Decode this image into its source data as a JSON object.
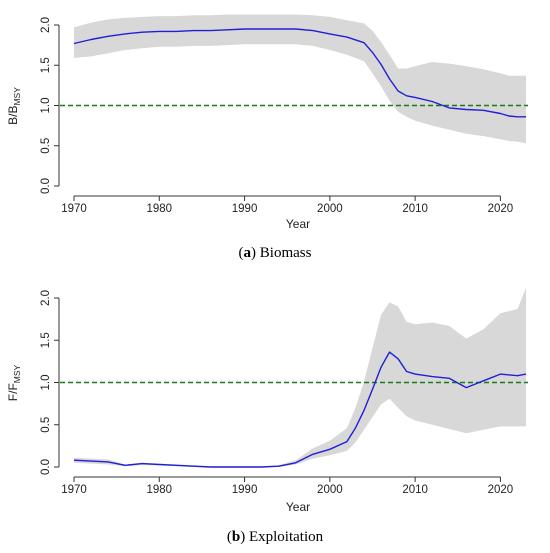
{
  "chart_data": [
    {
      "type": "line",
      "caption_prefix": "(",
      "caption_letter": "a",
      "caption_suffix": ") Biomass",
      "xlabel": "Year",
      "ylabel_main": "B/B",
      "ylabel_sub": "MSY",
      "xlim": [
        1970,
        2023
      ],
      "ylim": [
        0,
        2.0
      ],
      "xticks": [
        1970,
        1980,
        1990,
        2000,
        2010,
        2020
      ],
      "yticks": [
        "0.0",
        "0.5",
        "1.0",
        "1.5",
        "2.0"
      ],
      "reference_line": 1.0,
      "x": [
        1970,
        1972,
        1974,
        1976,
        1978,
        1980,
        1982,
        1984,
        1986,
        1988,
        1990,
        1992,
        1994,
        1996,
        1998,
        2000,
        2002,
        2004,
        2005,
        2006,
        2007,
        2008,
        2009,
        2010,
        2012,
        2014,
        2016,
        2018,
        2020,
        2021,
        2022,
        2023
      ],
      "series": [
        {
          "values": [
            1.77,
            1.82,
            1.86,
            1.89,
            1.91,
            1.92,
            1.92,
            1.93,
            1.93,
            1.94,
            1.95,
            1.95,
            1.95,
            1.95,
            1.93,
            1.89,
            1.85,
            1.78,
            1.66,
            1.51,
            1.33,
            1.18,
            1.12,
            1.1,
            1.05,
            0.97,
            0.95,
            0.94,
            0.9,
            0.87,
            0.86,
            0.86
          ]
        },
        {
          "values": [
            1.97,
            2.03,
            2.07,
            2.09,
            2.1,
            2.11,
            2.11,
            2.12,
            2.12,
            2.13,
            2.13,
            2.13,
            2.13,
            2.13,
            2.12,
            2.1,
            2.06,
            2.02,
            1.93,
            1.79,
            1.63,
            1.46,
            1.46,
            1.49,
            1.54,
            1.52,
            1.49,
            1.45,
            1.4,
            1.37,
            1.37,
            1.37
          ]
        },
        {
          "values": [
            1.59,
            1.61,
            1.65,
            1.69,
            1.71,
            1.73,
            1.73,
            1.74,
            1.74,
            1.75,
            1.76,
            1.76,
            1.76,
            1.76,
            1.74,
            1.69,
            1.63,
            1.55,
            1.4,
            1.24,
            1.06,
            0.92,
            0.86,
            0.81,
            0.75,
            0.7,
            0.65,
            0.62,
            0.58,
            0.56,
            0.55,
            0.53
          ]
        }
      ],
      "colors": {
        "line": "#1f1fd6",
        "band": "#d8d8d8",
        "ref": "#1a7a1a"
      }
    },
    {
      "type": "line",
      "caption_prefix": "(",
      "caption_letter": "b",
      "caption_suffix": ") Exploitation",
      "xlabel": "Year",
      "ylabel_main": "F/F",
      "ylabel_sub": "MSY",
      "xlim": [
        1970,
        2023
      ],
      "ylim": [
        0,
        2.0
      ],
      "xticks": [
        1970,
        1980,
        1990,
        2000,
        2010,
        2020
      ],
      "yticks": [
        "0.0",
        "0.5",
        "1.0",
        "1.5",
        "2.0"
      ],
      "reference_line": 1.0,
      "x": [
        1970,
        1972,
        1974,
        1976,
        1978,
        1980,
        1982,
        1984,
        1986,
        1988,
        1990,
        1992,
        1994,
        1996,
        1998,
        2000,
        2002,
        2003,
        2004,
        2005,
        2006,
        2007,
        2008,
        2009,
        2010,
        2012,
        2014,
        2016,
        2018,
        2020,
        2022,
        2023
      ],
      "series": [
        {
          "values": [
            0.08,
            0.07,
            0.06,
            0.02,
            0.04,
            0.03,
            0.02,
            0.01,
            0.0,
            0.0,
            0.0,
            0.0,
            0.01,
            0.05,
            0.15,
            0.21,
            0.3,
            0.46,
            0.67,
            0.92,
            1.18,
            1.36,
            1.28,
            1.13,
            1.1,
            1.07,
            1.05,
            0.94,
            1.02,
            1.1,
            1.08,
            1.1
          ]
        },
        {
          "values": [
            0.11,
            0.1,
            0.09,
            0.03,
            0.05,
            0.04,
            0.03,
            0.02,
            0.01,
            0.01,
            0.01,
            0.01,
            0.02,
            0.08,
            0.22,
            0.31,
            0.46,
            0.7,
            1.01,
            1.41,
            1.8,
            1.95,
            1.9,
            1.72,
            1.69,
            1.71,
            1.67,
            1.52,
            1.63,
            1.82,
            1.87,
            2.12
          ]
        },
        {
          "values": [
            0.05,
            0.04,
            0.03,
            0.01,
            0.02,
            0.02,
            0.01,
            0.0,
            0.0,
            0.0,
            0.0,
            0.0,
            0.0,
            0.03,
            0.1,
            0.14,
            0.19,
            0.29,
            0.44,
            0.59,
            0.74,
            0.81,
            0.7,
            0.6,
            0.55,
            0.5,
            0.45,
            0.4,
            0.44,
            0.48,
            0.48,
            0.48
          ]
        }
      ],
      "colors": {
        "line": "#1f1fd6",
        "band": "#d8d8d8",
        "ref": "#1a7a1a"
      }
    }
  ]
}
